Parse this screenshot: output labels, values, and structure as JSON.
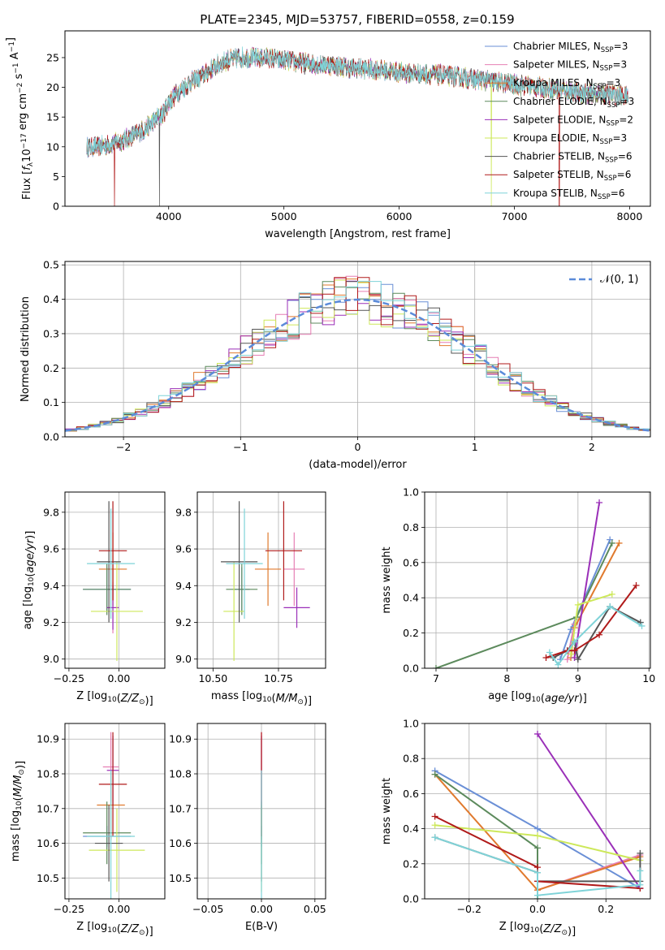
{
  "figure": {
    "title": "PLATE=2345, MJD=53757, FIBERID=0558, z=0.159"
  },
  "colors": {
    "Chabrier MILES": "#6a8fd6",
    "Salpeter MILES": "#e67fb4",
    "Kroupa MILES": "#e07a2e",
    "Chabrier ELODIE": "#5c8a5c",
    "Salpeter ELODIE": "#9a2fb8",
    "Kroupa ELODIE": "#cde85a",
    "Chabrier STELIB": "#555555",
    "Salpeter STELIB": "#b01a1a",
    "Kroupa STELIB": "#7fd3d8",
    "gaussian": "#5b8bd9",
    "grid": "#b0b0b0"
  },
  "chart_data": [
    {
      "id": "spectrum",
      "type": "line",
      "title": "PLATE=2345, MJD=53757, FIBERID=0558, z=0.159",
      "xlabel": "wavelength [Angstrom, rest frame]",
      "ylabel": "Flux [f_λ10^-17 erg cm^-2 s^-1 A^-1]",
      "xlim": [
        3100,
        8180
      ],
      "ylim": [
        0,
        29.5
      ],
      "xticks": [
        4000,
        5000,
        6000,
        7000,
        8000
      ],
      "yticks": [
        0,
        5,
        10,
        15,
        20,
        25
      ],
      "grid": false,
      "legend_position": "right",
      "legend": [
        {
          "series": "Chabrier MILES",
          "label": "Chabrier MILES, N",
          "sub": "SSP",
          "suffix": "=3"
        },
        {
          "series": "Salpeter MILES",
          "label": "Salpeter MILES, N",
          "sub": "SSP",
          "suffix": "=3"
        },
        {
          "series": "Kroupa MILES",
          "label": "Kroupa MILES, N",
          "sub": "SSP",
          "suffix": "=3"
        },
        {
          "series": "Chabrier ELODIE",
          "label": "Chabrier ELODIE, N",
          "sub": "SSP",
          "suffix": "=3"
        },
        {
          "series": "Salpeter ELODIE",
          "label": "Salpeter ELODIE, N",
          "sub": "SSP",
          "suffix": "=2"
        },
        {
          "series": "Kroupa ELODIE",
          "label": "Kroupa ELODIE, N",
          "sub": "SSP",
          "suffix": "=3"
        },
        {
          "series": "Chabrier STELIB",
          "label": "Chabrier STELIB, N",
          "sub": "SSP",
          "suffix": "=6"
        },
        {
          "series": "Salpeter STELIB",
          "label": "Salpeter STELIB, N",
          "sub": "SSP",
          "suffix": "=6"
        },
        {
          "series": "Kroupa STELIB",
          "label": "Kroupa STELIB, N",
          "sub": "SSP",
          "suffix": "=6"
        }
      ],
      "continuum": {
        "x": [
          3290,
          3400,
          3500,
          3600,
          3700,
          3800,
          3880,
          3950,
          4000,
          4100,
          4200,
          4300,
          4400,
          4500,
          4600,
          4700,
          4800,
          4850,
          5000,
          5200,
          5400,
          5600,
          5800,
          6000,
          6200,
          6400,
          6600,
          6800,
          7000,
          7200,
          7400,
          7600,
          7800,
          7990
        ],
        "y": [
          10,
          10,
          10.5,
          11,
          12,
          13,
          14.5,
          15.5,
          17.5,
          19.5,
          21,
          22,
          23.5,
          24.5,
          25,
          25,
          24.8,
          25,
          24.5,
          24,
          23.8,
          23.2,
          23,
          22.5,
          22.3,
          22,
          21.5,
          21,
          20.5,
          20,
          19.5,
          19,
          18.8,
          18.5
        ]
      },
      "noise_amplitude": 1.3,
      "series": [
        "Chabrier MILES",
        "Salpeter MILES",
        "Kroupa MILES",
        "Chabrier ELODIE",
        "Salpeter ELODIE",
        "Kroupa ELODIE",
        "Chabrier STELIB",
        "Salpeter STELIB",
        "Kroupa STELIB"
      ],
      "dips": [
        {
          "x": 3530,
          "series": "Salpeter STELIB",
          "to": 0
        },
        {
          "x": 3920,
          "series": "Chabrier STELIB",
          "to": 0
        },
        {
          "x": 6800,
          "series": "Kroupa ELODIE",
          "to": 0
        },
        {
          "x": 7390,
          "series": "Salpeter STELIB",
          "to": 0
        }
      ]
    },
    {
      "id": "residuals",
      "type": "line",
      "xlabel": "(data-model)/error",
      "ylabel": "Normed distribution",
      "xlim": [
        -2.5,
        2.5
      ],
      "ylim": [
        0,
        0.51
      ],
      "xticks": [
        -2,
        -1,
        0,
        1,
        2
      ],
      "yticks": [
        0.0,
        0.1,
        0.2,
        0.3,
        0.4,
        0.5
      ],
      "grid": true,
      "legend_position": "top-right",
      "legend": [
        {
          "label": "𝒩(0, 1)",
          "series": "gaussian"
        }
      ],
      "bin_width": 0.1,
      "series": [
        "Chabrier MILES",
        "Salpeter MILES",
        "Kroupa MILES",
        "Chabrier ELODIE",
        "Salpeter ELODIE",
        "Kroupa ELODIE",
        "Chabrier STELIB",
        "Salpeter STELIB",
        "Kroupa STELIB"
      ]
    },
    {
      "id": "age_vs_Z",
      "type": "scatter",
      "xlabel": "Z [log10(Z/Z☉)]",
      "ylabel": "age [log10(age/yr)]",
      "xlim": [
        -0.27,
        0.23
      ],
      "ylim": [
        8.95,
        9.91
      ],
      "xticks": [
        -0.25,
        0.0
      ],
      "yticks": [
        9.0,
        9.2,
        9.4,
        9.6,
        9.8
      ],
      "grid": true,
      "points": [
        {
          "series": "Chabrier MILES",
          "x": -0.06,
          "xerr": 0.12,
          "y": 9.38,
          "yerr": 0.12
        },
        {
          "series": "Salpeter MILES",
          "x": -0.03,
          "xerr": 0.03,
          "y": 9.28,
          "yerr": 0.14
        },
        {
          "series": "Kroupa MILES",
          "x": -0.03,
          "xerr": 0.07,
          "y": 9.49,
          "yerr": 0.2
        },
        {
          "series": "Chabrier ELODIE",
          "x": -0.06,
          "xerr": 0.12,
          "y": 9.38,
          "yerr": 0.14
        },
        {
          "series": "Salpeter ELODIE",
          "x": -0.03,
          "xerr": 0.03,
          "y": 9.28,
          "yerr": 0.12
        },
        {
          "series": "Kroupa ELODIE",
          "x": -0.01,
          "xerr": 0.13,
          "y": 9.26,
          "yerr": 0.27
        },
        {
          "series": "Chabrier STELIB",
          "x": -0.05,
          "xerr": 0.06,
          "y": 9.53,
          "yerr": 0.33
        },
        {
          "series": "Salpeter STELIB",
          "x": -0.03,
          "xerr": 0.07,
          "y": 9.59,
          "yerr": 0.27
        },
        {
          "series": "Kroupa STELIB",
          "x": -0.04,
          "xerr": 0.12,
          "y": 9.52,
          "yerr": 0.3
        }
      ]
    },
    {
      "id": "age_vs_mass",
      "type": "scatter",
      "xlabel": "mass [log10(M/M☉)]",
      "ylabel": "",
      "xlim": [
        10.44,
        10.93
      ],
      "ylim": [
        8.95,
        9.91
      ],
      "xticks": [
        10.5,
        10.75
      ],
      "yticks": [
        9.0,
        9.2,
        9.4,
        9.6,
        9.8
      ],
      "grid": true,
      "points": [
        {
          "series": "Chabrier MILES",
          "x": 10.61,
          "xerr": 0.03,
          "y": 9.38,
          "yerr": 0.12
        },
        {
          "series": "Salpeter MILES",
          "x": 10.81,
          "xerr": 0.04,
          "y": 9.49,
          "yerr": 0.2
        },
        {
          "series": "Kroupa MILES",
          "x": 10.71,
          "xerr": 0.05,
          "y": 9.49,
          "yerr": 0.2
        },
        {
          "series": "Chabrier ELODIE",
          "x": 10.61,
          "xerr": 0.06,
          "y": 9.38,
          "yerr": 0.14
        },
        {
          "series": "Salpeter ELODIE",
          "x": 10.82,
          "xerr": 0.05,
          "y": 9.28,
          "yerr": 0.11
        },
        {
          "series": "Kroupa ELODIE",
          "x": 10.58,
          "xerr": 0.04,
          "y": 9.26,
          "yerr": 0.27
        },
        {
          "series": "Chabrier STELIB",
          "x": 10.6,
          "xerr": 0.07,
          "y": 9.53,
          "yerr": 0.33
        },
        {
          "series": "Salpeter STELIB",
          "x": 10.77,
          "xerr": 0.07,
          "y": 9.59,
          "yerr": 0.27
        },
        {
          "series": "Kroupa STELIB",
          "x": 10.62,
          "xerr": 0.07,
          "y": 9.52,
          "yerr": 0.3
        }
      ]
    },
    {
      "id": "massweight_vs_age",
      "type": "line",
      "xlabel": "age [log10(age/yr)]",
      "ylabel": "mass weight",
      "xlim": [
        6.84,
        10.02
      ],
      "ylim": [
        0,
        1
      ],
      "xticks": [
        7,
        8,
        9,
        10
      ],
      "yticks": [
        0.0,
        0.2,
        0.4,
        0.6,
        0.8,
        1.0
      ],
      "grid": true,
      "series": [
        {
          "name": "Chabrier MILES",
          "x": [
            8.75,
            8.9,
            9.45
          ],
          "y": [
            0.05,
            0.22,
            0.73
          ]
        },
        {
          "name": "Salpeter MILES",
          "x": [
            8.85,
            8.95
          ],
          "y": [
            0.05,
            0.25
          ]
        },
        {
          "name": "Kroupa MILES",
          "x": [
            8.9,
            8.95,
            9.58
          ],
          "y": [
            0.06,
            0.23,
            0.71
          ]
        },
        {
          "name": "Chabrier ELODIE",
          "x": [
            7.0,
            8.98,
            9.48
          ],
          "y": [
            0.0,
            0.29,
            0.71
          ]
        },
        {
          "name": "Salpeter ELODIE",
          "x": [
            8.95,
            9.3
          ],
          "y": [
            0.06,
            0.94
          ]
        },
        {
          "name": "Kroupa ELODIE",
          "x": [
            8.9,
            9.0,
            9.48
          ],
          "y": [
            0.08,
            0.36,
            0.42
          ]
        },
        {
          "name": "Chabrier STELIB",
          "x": [
            8.65,
            8.85,
            8.95,
            9.0,
            9.45,
            9.88
          ],
          "y": [
            0.06,
            0.1,
            0.15,
            0.05,
            0.35,
            0.26
          ]
        },
        {
          "name": "Salpeter STELIB",
          "x": [
            8.55,
            8.85,
            8.95,
            9.3,
            9.82
          ],
          "y": [
            0.06,
            0.1,
            0.1,
            0.19,
            0.47
          ]
        },
        {
          "name": "Kroupa STELIB",
          "x": [
            8.6,
            8.72,
            8.95,
            9.45,
            9.9
          ],
          "y": [
            0.09,
            0.02,
            0.15,
            0.35,
            0.24
          ]
        }
      ]
    },
    {
      "id": "mass_vs_Z",
      "type": "scatter",
      "xlabel": "Z [log10(Z/Z☉)]",
      "ylabel": "mass [log10(M/M☉)]",
      "xlim": [
        -0.27,
        0.23
      ],
      "ylim": [
        10.44,
        10.945
      ],
      "xticks": [
        -0.25,
        0.0
      ],
      "yticks": [
        10.5,
        10.6,
        10.7,
        10.8,
        10.9
      ],
      "grid": true,
      "points": [
        {
          "series": "Chabrier MILES",
          "x": -0.06,
          "xerr": 0.12,
          "y": 10.62,
          "yerr": 0.03
        },
        {
          "series": "Salpeter MILES",
          "x": -0.04,
          "xerr": 0.04,
          "y": 10.82,
          "yerr": 0.1
        },
        {
          "series": "Kroupa MILES",
          "x": -0.04,
          "xerr": 0.07,
          "y": 10.71,
          "yerr": 0.1
        },
        {
          "series": "Chabrier ELODIE",
          "x": -0.06,
          "xerr": 0.12,
          "y": 10.63,
          "yerr": 0.09
        },
        {
          "series": "Salpeter ELODIE",
          "x": -0.03,
          "xerr": 0.03,
          "y": 10.81,
          "yerr": 0.1
        },
        {
          "series": "Kroupa ELODIE",
          "x": -0.01,
          "xerr": 0.14,
          "y": 10.58,
          "yerr": 0.12
        },
        {
          "series": "Chabrier STELIB",
          "x": -0.05,
          "xerr": 0.07,
          "y": 10.6,
          "yerr": 0.11
        },
        {
          "series": "Salpeter STELIB",
          "x": -0.03,
          "xerr": 0.07,
          "y": 10.77,
          "yerr": 0.15
        },
        {
          "series": "Kroupa STELIB",
          "x": -0.04,
          "xerr": 0.12,
          "y": 10.62,
          "yerr": 0.19
        }
      ]
    },
    {
      "id": "mass_vs_ebv",
      "type": "scatter",
      "xlabel": "E(B-V)",
      "ylabel": "",
      "xlim": [
        -0.06,
        0.06
      ],
      "ylim": [
        10.44,
        10.945
      ],
      "xticks": [
        -0.05,
        0.0,
        0.05
      ],
      "yticks": [
        10.5,
        10.6,
        10.7,
        10.8,
        10.9
      ],
      "grid": true,
      "points": [
        {
          "series": "Chabrier MILES",
          "x": 0.0,
          "xerr": 0,
          "y": 10.62,
          "yerr": 0.03
        },
        {
          "series": "Salpeter MILES",
          "x": 0.0,
          "xerr": 0,
          "y": 10.82,
          "yerr": 0.1
        },
        {
          "series": "Kroupa MILES",
          "x": 0.0,
          "xerr": 0,
          "y": 10.71,
          "yerr": 0.1
        },
        {
          "series": "Chabrier ELODIE",
          "x": 0.0,
          "xerr": 0,
          "y": 10.63,
          "yerr": 0.09
        },
        {
          "series": "Salpeter ELODIE",
          "x": 0.0,
          "xerr": 0,
          "y": 10.81,
          "yerr": 0.1
        },
        {
          "series": "Kroupa ELODIE",
          "x": 0.0,
          "xerr": 0,
          "y": 10.58,
          "yerr": 0.12
        },
        {
          "series": "Chabrier STELIB",
          "x": 0.0,
          "xerr": 0,
          "y": 10.6,
          "yerr": 0.11
        },
        {
          "series": "Salpeter STELIB",
          "x": 0.0,
          "xerr": 0,
          "y": 10.77,
          "yerr": 0.15
        },
        {
          "series": "Kroupa STELIB",
          "x": 0.0,
          "xerr": 0,
          "y": 10.62,
          "yerr": 0.19
        }
      ]
    },
    {
      "id": "massweight_vs_Z",
      "type": "line",
      "xlabel": "Z [log10(Z/Z☉)]",
      "ylabel": "mass weight",
      "xlim": [
        -0.33,
        0.33
      ],
      "ylim": [
        0,
        1
      ],
      "xticks": [
        -0.2,
        0.0,
        0.2
      ],
      "yticks": [
        0.0,
        0.2,
        0.4,
        0.6,
        0.8,
        1.0
      ],
      "grid": true,
      "series": [
        {
          "name": "Chabrier MILES",
          "x": [
            -0.3,
            0.0,
            0.3
          ],
          "y": [
            0.73,
            0.4,
            0.06
          ]
        },
        {
          "name": "Salpeter MILES",
          "x": [
            0.0,
            0.3
          ],
          "y": [
            0.05,
            0.25
          ]
        },
        {
          "name": "Kroupa MILES",
          "x": [
            -0.3,
            0.0,
            0.3
          ],
          "y": [
            0.71,
            0.05,
            0.24
          ]
        },
        {
          "name": "Chabrier ELODIE",
          "x": [
            -0.3,
            0.0,
            0.0
          ],
          "y": [
            0.71,
            0.29,
            0.0
          ]
        },
        {
          "name": "Salpeter ELODIE",
          "x": [
            0.0,
            0.3
          ],
          "y": [
            0.94,
            0.06
          ]
        },
        {
          "name": "Kroupa ELODIE",
          "x": [
            -0.3,
            0.0,
            0.3
          ],
          "y": [
            0.42,
            0.36,
            0.22
          ]
        },
        {
          "name": "Chabrier STELIB",
          "x": [
            -0.3,
            0.0,
            0.0,
            0.3,
            0.3
          ],
          "y": [
            0.35,
            0.15,
            0.1,
            0.1,
            0.26
          ]
        },
        {
          "name": "Salpeter STELIB",
          "x": [
            -0.3,
            0.0,
            0.0,
            0.3
          ],
          "y": [
            0.47,
            0.18,
            0.1,
            0.06
          ]
        },
        {
          "name": "Kroupa STELIB",
          "x": [
            -0.3,
            0.0,
            0.0,
            0.3,
            0.3
          ],
          "y": [
            0.35,
            0.15,
            0.02,
            0.08,
            0.16
          ]
        }
      ]
    }
  ]
}
